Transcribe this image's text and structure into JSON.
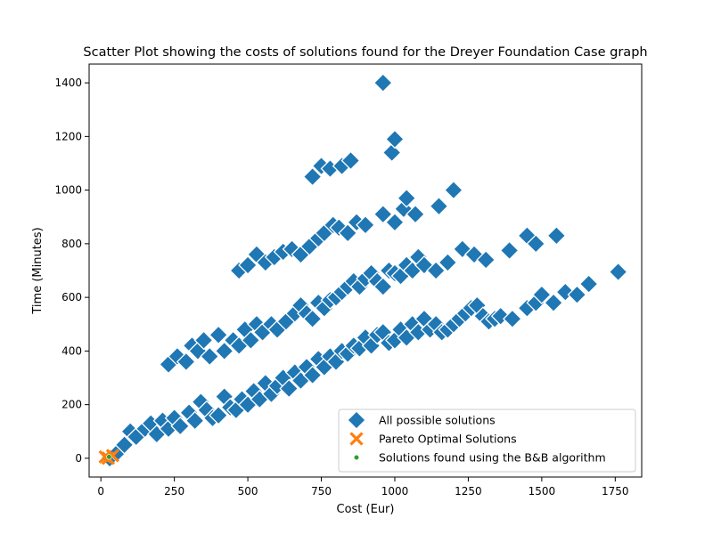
{
  "chart_data": {
    "type": "scatter",
    "title": "Scatter Plot showing the costs of solutions found for the Dreyer Foundation Case graph",
    "xlabel": "Cost (Eur)",
    "ylabel": "Time (Minutes)",
    "xlim": [
      -40,
      1840
    ],
    "ylim": [
      -70,
      1470
    ],
    "xticks": [
      0,
      250,
      500,
      750,
      1000,
      1250,
      1500,
      1750
    ],
    "yticks": [
      0,
      200,
      400,
      600,
      800,
      1000,
      1200,
      1400
    ],
    "grid": false,
    "legend_position": "lower right",
    "series": [
      {
        "name": "All possible solutions",
        "marker": "diamond",
        "color": "#1f77b4",
        "points": [
          [
            30,
            0
          ],
          [
            55,
            20
          ],
          [
            80,
            50
          ],
          [
            100,
            100
          ],
          [
            120,
            80
          ],
          [
            150,
            110
          ],
          [
            170,
            130
          ],
          [
            190,
            90
          ],
          [
            210,
            140
          ],
          [
            230,
            110
          ],
          [
            250,
            150
          ],
          [
            270,
            120
          ],
          [
            300,
            170
          ],
          [
            320,
            140
          ],
          [
            340,
            210
          ],
          [
            360,
            180
          ],
          [
            380,
            150
          ],
          [
            400,
            160
          ],
          [
            420,
            230
          ],
          [
            440,
            190
          ],
          [
            460,
            180
          ],
          [
            480,
            220
          ],
          [
            500,
            200
          ],
          [
            520,
            250
          ],
          [
            540,
            220
          ],
          [
            560,
            280
          ],
          [
            580,
            240
          ],
          [
            600,
            270
          ],
          [
            620,
            300
          ],
          [
            640,
            260
          ],
          [
            660,
            320
          ],
          [
            680,
            290
          ],
          [
            700,
            340
          ],
          [
            720,
            310
          ],
          [
            740,
            370
          ],
          [
            760,
            340
          ],
          [
            780,
            380
          ],
          [
            800,
            360
          ],
          [
            820,
            400
          ],
          [
            840,
            390
          ],
          [
            860,
            420
          ],
          [
            880,
            410
          ],
          [
            900,
            450
          ],
          [
            920,
            420
          ],
          [
            940,
            460
          ],
          [
            960,
            470
          ],
          [
            980,
            430
          ],
          [
            1000,
            440
          ],
          [
            1020,
            480
          ],
          [
            1040,
            450
          ],
          [
            1060,
            500
          ],
          [
            1080,
            470
          ],
          [
            1100,
            520
          ],
          [
            1120,
            480
          ],
          [
            1140,
            500
          ],
          [
            1160,
            470
          ],
          [
            1180,
            480
          ],
          [
            1200,
            500
          ],
          [
            1220,
            520
          ],
          [
            1240,
            540
          ],
          [
            1260,
            560
          ],
          [
            1280,
            570
          ],
          [
            1300,
            530
          ],
          [
            1320,
            510
          ],
          [
            1340,
            520
          ],
          [
            1360,
            530
          ],
          [
            1400,
            520
          ],
          [
            1450,
            560
          ],
          [
            1480,
            580
          ],
          [
            1500,
            610
          ],
          [
            1540,
            580
          ],
          [
            1580,
            620
          ],
          [
            1620,
            610
          ],
          [
            1660,
            650
          ],
          [
            1760,
            695
          ],
          [
            230,
            350
          ],
          [
            260,
            380
          ],
          [
            290,
            360
          ],
          [
            310,
            420
          ],
          [
            330,
            400
          ],
          [
            350,
            440
          ],
          [
            370,
            380
          ],
          [
            400,
            460
          ],
          [
            420,
            400
          ],
          [
            450,
            440
          ],
          [
            470,
            420
          ],
          [
            490,
            480
          ],
          [
            510,
            440
          ],
          [
            530,
            500
          ],
          [
            550,
            470
          ],
          [
            580,
            500
          ],
          [
            600,
            480
          ],
          [
            630,
            510
          ],
          [
            660,
            540
          ],
          [
            680,
            570
          ],
          [
            700,
            540
          ],
          [
            720,
            520
          ],
          [
            740,
            580
          ],
          [
            760,
            560
          ],
          [
            780,
            590
          ],
          [
            800,
            600
          ],
          [
            820,
            620
          ],
          [
            840,
            640
          ],
          [
            860,
            660
          ],
          [
            880,
            640
          ],
          [
            900,
            670
          ],
          [
            920,
            690
          ],
          [
            940,
            660
          ],
          [
            960,
            640
          ],
          [
            980,
            700
          ],
          [
            1000,
            690
          ],
          [
            1020,
            680
          ],
          [
            1040,
            720
          ],
          [
            1060,
            700
          ],
          [
            1080,
            750
          ],
          [
            1100,
            720
          ],
          [
            1140,
            700
          ],
          [
            1180,
            730
          ],
          [
            1230,
            780
          ],
          [
            1270,
            760
          ],
          [
            1310,
            740
          ],
          [
            1390,
            775
          ],
          [
            1450,
            830
          ],
          [
            1480,
            800
          ],
          [
            1550,
            830
          ],
          [
            470,
            700
          ],
          [
            500,
            720
          ],
          [
            530,
            760
          ],
          [
            560,
            730
          ],
          [
            590,
            750
          ],
          [
            620,
            770
          ],
          [
            650,
            780
          ],
          [
            680,
            760
          ],
          [
            710,
            790
          ],
          [
            740,
            820
          ],
          [
            760,
            840
          ],
          [
            790,
            870
          ],
          [
            810,
            860
          ],
          [
            840,
            840
          ],
          [
            870,
            880
          ],
          [
            900,
            870
          ],
          [
            960,
            910
          ],
          [
            1000,
            880
          ],
          [
            1030,
            930
          ],
          [
            1040,
            970
          ],
          [
            1070,
            910
          ],
          [
            1150,
            940
          ],
          [
            1200,
            1000
          ],
          [
            720,
            1050
          ],
          [
            750,
            1090
          ],
          [
            780,
            1080
          ],
          [
            820,
            1090
          ],
          [
            850,
            1110
          ],
          [
            990,
            1140
          ],
          [
            1000,
            1190
          ],
          [
            960,
            1400
          ]
        ]
      },
      {
        "name": "Pareto Optimal Solutions",
        "marker": "x",
        "color": "#ff7f0e",
        "points": [
          [
            15,
            5
          ],
          [
            25,
            0
          ],
          [
            40,
            10
          ]
        ]
      },
      {
        "name": "Solutions found using the B&B algorithm",
        "marker": "circle",
        "color": "#2ca02c",
        "points": [
          [
            28,
            5
          ]
        ]
      }
    ]
  }
}
